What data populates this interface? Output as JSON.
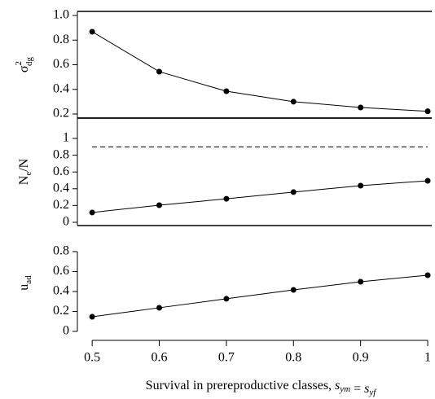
{
  "chart_data": [
    {
      "type": "line",
      "frame": true,
      "ylabel": {
        "base": "σ",
        "sub": "dg",
        "sup": "2"
      },
      "x": [
        0.5,
        0.6,
        0.7,
        0.8,
        0.9,
        1.0
      ],
      "values": [
        0.868,
        0.544,
        0.385,
        0.3,
        0.253,
        0.222
      ],
      "xlim": [
        0.478,
        1.006
      ],
      "ylim": [
        0.167,
        1.033
      ],
      "yticks": [
        {
          "value": 1,
          "label": "1.0"
        },
        0.8,
        0.6,
        0.4,
        0.2
      ],
      "color": "#000000"
    },
    {
      "type": "line",
      "frame": true,
      "ylabel": {
        "base": "N",
        "sub": "e",
        "after": "/N"
      },
      "x": [
        0.5,
        0.6,
        0.7,
        0.8,
        0.9,
        1.0
      ],
      "values": [
        0.117,
        0.204,
        0.28,
        0.36,
        0.437,
        0.495
      ],
      "reference_line": 0.9,
      "reference_style": "dashed",
      "xlim": [
        0.478,
        1.006
      ],
      "ylim": [
        -0.039,
        1.243
      ],
      "yticks": [
        1,
        0.8,
        0.6,
        0.4,
        0.2,
        0
      ],
      "color": "#000000"
    },
    {
      "type": "line",
      "frame": false,
      "ylabel": {
        "base": "u",
        "sub": "ad"
      },
      "x": [
        0.5,
        0.6,
        0.7,
        0.8,
        0.9,
        1.0
      ],
      "values": [
        0.147,
        0.237,
        0.327,
        0.416,
        0.498,
        0.563
      ],
      "xlim": [
        0.478,
        1.006
      ],
      "ylim": [
        -0.09,
        1.061
      ],
      "yticks": [
        0.8,
        0.6,
        0.4,
        0.2,
        0
      ],
      "xticks": [
        0.5,
        0.6,
        0.7,
        0.8,
        0.9,
        1
      ],
      "xlabel": {
        "text": "Survival in prereproductive classes, ",
        "terms": [
          {
            "base": "s",
            "sub": "ym"
          },
          {
            "base": "s",
            "sub": "yf"
          }
        ],
        "joiner": " = "
      },
      "color": "#000000"
    }
  ]
}
